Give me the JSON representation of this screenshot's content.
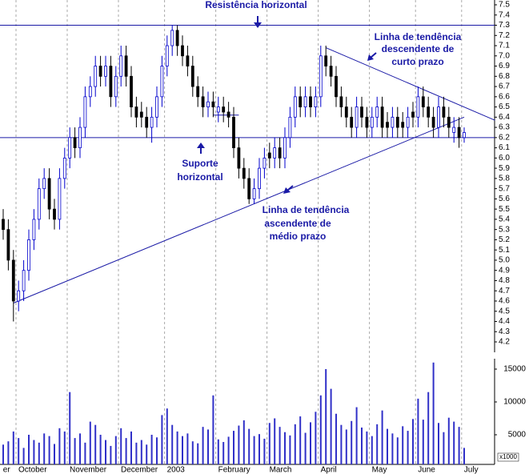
{
  "chart_data": {
    "type": "candlestick",
    "categories": [
      "er",
      null,
      null,
      "October",
      null,
      null,
      null,
      null,
      null,
      null,
      null,
      null,
      null,
      "November",
      null,
      null,
      null,
      null,
      null,
      null,
      null,
      null,
      null,
      "December",
      null,
      null,
      null,
      null,
      null,
      null,
      null,
      null,
      "2003",
      null,
      null,
      null,
      null,
      null,
      null,
      null,
      null,
      null,
      "February",
      null,
      null,
      null,
      null,
      null,
      null,
      null,
      null,
      null,
      "March",
      null,
      null,
      null,
      null,
      null,
      null,
      null,
      null,
      null,
      "April",
      null,
      null,
      null,
      null,
      null,
      null,
      null,
      null,
      null,
      "May",
      null,
      null,
      null,
      null,
      null,
      null,
      null,
      null,
      "June",
      null,
      null,
      null,
      null,
      null,
      null,
      null,
      null,
      "July"
    ],
    "open": [
      5.4,
      5.3,
      5.0,
      4.6,
      4.7,
      4.9,
      5.2,
      5.4,
      5.7,
      5.8,
      5.5,
      5.4,
      5.8,
      6.0,
      6.2,
      6.1,
      6.3,
      6.6,
      6.7,
      6.9,
      6.8,
      6.9,
      6.6,
      6.8,
      7.0,
      6.8,
      6.5,
      6.45,
      6.4,
      6.3,
      6.4,
      6.6,
      6.9,
      7.1,
      7.25,
      7.1,
      7.0,
      6.9,
      6.7,
      6.6,
      6.5,
      6.55,
      6.45,
      6.5,
      6.45,
      6.4,
      6.1,
      5.9,
      5.8,
      5.6,
      5.7,
      5.9,
      6.05,
      6.0,
      6.1,
      6.0,
      6.2,
      6.4,
      6.6,
      6.5,
      6.6,
      6.5,
      6.6,
      7.0,
      6.9,
      6.8,
      6.6,
      6.5,
      6.4,
      6.3,
      6.5,
      6.4,
      6.3,
      6.4,
      6.5,
      6.35,
      6.3,
      6.4,
      6.35,
      6.3,
      6.45,
      6.4,
      6.6,
      6.5,
      6.4,
      6.3,
      6.5,
      6.4,
      6.25,
      6.3,
      6.2
    ],
    "high": [
      5.5,
      5.4,
      5.1,
      4.8,
      5.0,
      5.3,
      5.5,
      5.8,
      5.9,
      5.9,
      5.6,
      5.9,
      6.1,
      6.3,
      6.3,
      6.4,
      6.7,
      6.8,
      7.0,
      7.0,
      7.0,
      7.0,
      6.9,
      7.1,
      7.1,
      6.9,
      6.6,
      6.55,
      6.5,
      6.5,
      6.7,
      7.0,
      7.2,
      7.3,
      7.3,
      7.2,
      7.1,
      7.0,
      6.8,
      6.7,
      6.65,
      6.65,
      6.6,
      6.6,
      6.55,
      6.5,
      6.2,
      6.0,
      5.9,
      5.8,
      6.0,
      6.1,
      6.15,
      6.2,
      6.2,
      6.3,
      6.5,
      6.7,
      6.7,
      6.7,
      6.7,
      6.7,
      7.1,
      7.1,
      7.0,
      6.9,
      6.7,
      6.6,
      6.5,
      6.6,
      6.6,
      6.5,
      6.5,
      6.6,
      6.6,
      6.45,
      6.5,
      6.5,
      6.45,
      6.5,
      6.55,
      6.7,
      6.7,
      6.6,
      6.5,
      6.6,
      6.6,
      6.5,
      6.4,
      6.4,
      6.3
    ],
    "low": [
      5.2,
      4.9,
      4.4,
      4.5,
      4.6,
      4.8,
      5.1,
      5.3,
      5.6,
      5.4,
      5.3,
      5.3,
      5.7,
      5.9,
      6.0,
      6.0,
      6.2,
      6.5,
      6.6,
      6.7,
      6.7,
      6.5,
      6.5,
      6.7,
      6.7,
      6.4,
      6.3,
      6.3,
      6.2,
      6.15,
      6.3,
      6.5,
      6.8,
      7.0,
      7.0,
      6.9,
      6.8,
      6.6,
      6.5,
      6.4,
      6.4,
      6.4,
      6.35,
      6.35,
      6.3,
      6.0,
      5.8,
      5.7,
      5.55,
      5.55,
      5.6,
      5.8,
      5.9,
      5.9,
      5.9,
      5.9,
      6.1,
      6.3,
      6.4,
      6.4,
      6.4,
      6.4,
      6.5,
      6.8,
      6.7,
      6.5,
      6.4,
      6.3,
      6.2,
      6.2,
      6.3,
      6.2,
      6.2,
      6.3,
      6.2,
      6.2,
      6.2,
      6.2,
      6.2,
      6.2,
      6.3,
      6.3,
      6.4,
      6.3,
      6.2,
      6.2,
      6.3,
      6.2,
      6.15,
      6.1,
      6.15
    ],
    "close": [
      5.3,
      5.0,
      4.6,
      4.7,
      4.9,
      5.2,
      5.4,
      5.7,
      5.8,
      5.5,
      5.4,
      5.8,
      6.0,
      6.2,
      6.1,
      6.3,
      6.6,
      6.7,
      6.9,
      6.8,
      6.9,
      6.6,
      6.8,
      7.0,
      6.8,
      6.5,
      6.4,
      6.4,
      6.3,
      6.4,
      6.6,
      6.9,
      7.1,
      7.25,
      7.1,
      7.0,
      6.9,
      6.7,
      6.6,
      6.5,
      6.55,
      6.5,
      6.5,
      6.45,
      6.4,
      6.1,
      5.9,
      5.8,
      5.6,
      5.7,
      5.9,
      6.0,
      6.0,
      6.1,
      6.0,
      6.2,
      6.4,
      6.6,
      6.5,
      6.6,
      6.5,
      6.6,
      7.0,
      6.9,
      6.8,
      6.6,
      6.5,
      6.4,
      6.3,
      6.5,
      6.4,
      6.3,
      6.4,
      6.5,
      6.3,
      6.3,
      6.4,
      6.3,
      6.3,
      6.4,
      6.4,
      6.6,
      6.5,
      6.4,
      6.3,
      6.5,
      6.4,
      6.3,
      6.3,
      6.2,
      6.25
    ],
    "up_color": "#0000cc",
    "down_color": "#000000",
    "volume": {
      "color": "#3030c8",
      "axis": "y2",
      "values": [
        3500,
        4000,
        5500,
        4500,
        3000,
        5000,
        4200,
        3800,
        5200,
        4800,
        3600,
        6000,
        5500,
        11500,
        4500,
        5200,
        3800,
        7000,
        6500,
        5000,
        4200,
        3300,
        4800,
        6000,
        4500,
        5500,
        3800,
        4200,
        3500,
        5000,
        4600,
        8000,
        9000,
        6500,
        5500,
        4800,
        5200,
        4000,
        3700,
        6200,
        5800,
        11000,
        4300,
        3900,
        4700,
        5600,
        6400,
        7200,
        5900,
        4800,
        5100,
        4400,
        6800,
        7500,
        6200,
        5400,
        4900,
        6600,
        7800,
        5300,
        6900,
        8500,
        11000,
        15000,
        12000,
        8200,
        6500,
        5800,
        7100,
        9200,
        6100,
        5500,
        4800,
        6600,
        8700,
        5900,
        5200,
        4600,
        6300,
        5600,
        7400,
        10500,
        7300,
        11500,
        16000,
        6800,
        5400,
        7600,
        7000,
        6200,
        3000
      ]
    },
    "ylim": [
      4.2,
      7.5
    ],
    "yticks": [
      4.2,
      4.3,
      4.4,
      4.5,
      4.6,
      4.7,
      4.8,
      4.9,
      {
        "value": 5,
        "label": "5.0"
      },
      5.1,
      5.2,
      5.3,
      5.4,
      5.5,
      5.6,
      5.7,
      5.8,
      5.9,
      {
        "value": 6,
        "label": "6.0"
      },
      6.1,
      6.2,
      6.3,
      6.4,
      6.5,
      6.6,
      6.7,
      6.8,
      6.9,
      {
        "value": 7,
        "label": "7.0"
      },
      7.1,
      7.2,
      7.3,
      7.4,
      7.5
    ],
    "y2lim": [
      0,
      17000
    ],
    "y2ticks": [
      5000,
      10000,
      15000
    ],
    "y2label": "x1000",
    "horizontal_lines": [
      7.3,
      6.2
    ],
    "trendlines": [
      {
        "x": [
          2,
          90
        ],
        "y": [
          4.58,
          6.4
        ]
      },
      {
        "x": [
          63,
          96
        ],
        "y": [
          7.08,
          6.37
        ]
      },
      {
        "x": [
          41,
          46
        ],
        "y": [
          6.42,
          6.42
        ]
      }
    ],
    "line_color": "#1a1aa6",
    "grid": true,
    "annotations": {
      "resistance": [
        "Resistência horizontal"
      ],
      "support": [
        "Suporte",
        "horizontal"
      ],
      "descending": [
        "Linha de tendência",
        "descendente de",
        "curto prazo"
      ],
      "ascending": [
        "Linha de tendência",
        "ascendente de",
        "médio prazo"
      ]
    }
  }
}
